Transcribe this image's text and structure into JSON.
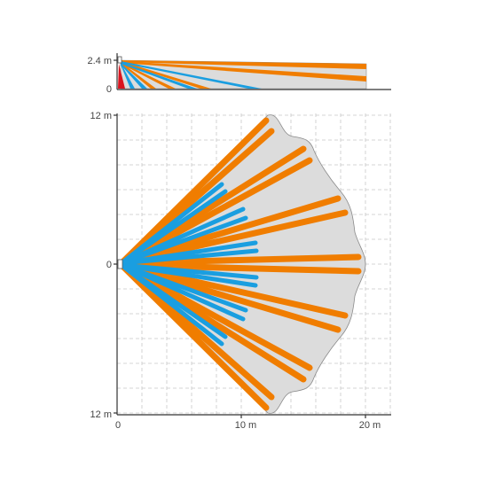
{
  "diagram": {
    "type": "pir-detection-pattern",
    "colors": {
      "coverage_fill": "#dcdcdc",
      "coverage_stroke": "#8a8a8a",
      "long_range_zone": "#f07d00",
      "short_range_zone": "#1a9ee0",
      "creep_zone": "#d9141e",
      "grid": "#c8c8c8",
      "axis": "#333333",
      "label": "#444444"
    },
    "side_view": {
      "y_ticks": [
        "2.4 m",
        "0"
      ],
      "height_m": 2.4,
      "x_range_m": [
        0,
        20
      ]
    },
    "top_view": {
      "y_ticks": [
        "12 m",
        "0",
        "12 m"
      ],
      "x_ticks": [
        "0",
        "10 m",
        "20 m"
      ],
      "x_range_m": [
        0,
        20
      ],
      "y_range_m": [
        -12,
        12
      ],
      "coverage_angle_deg": 90,
      "long_range_m": 20,
      "short_range_m": 11
    }
  }
}
